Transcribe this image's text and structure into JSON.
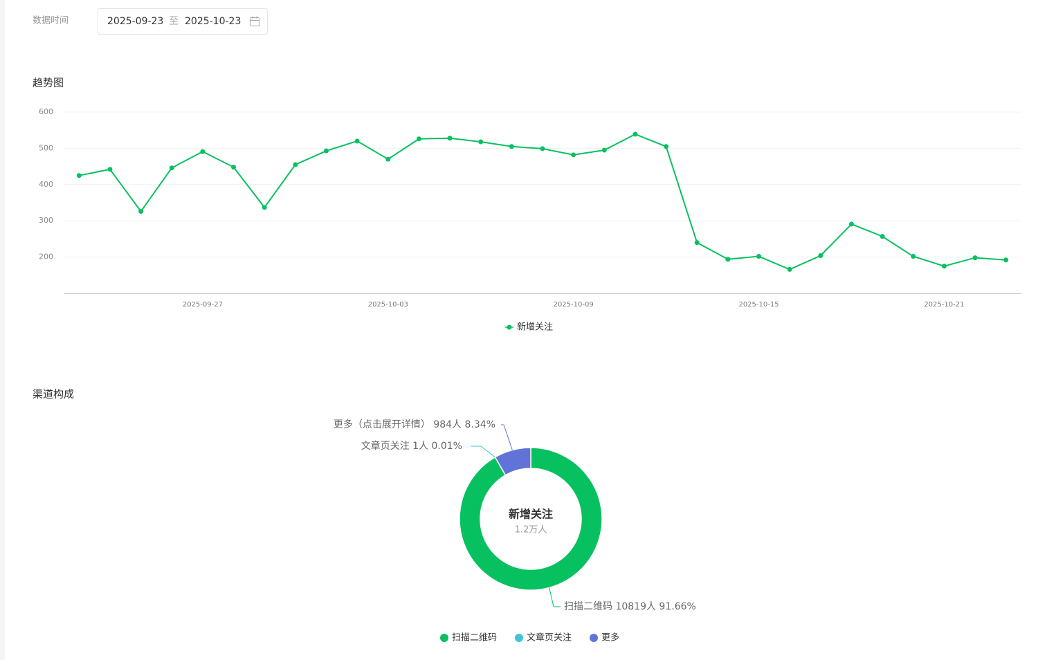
{
  "filter": {
    "label": "数据时间",
    "start": "2025-09-23",
    "separator": "至",
    "end": "2025-10-23"
  },
  "chart_data": [
    {
      "type": "line",
      "title": "趋势图",
      "categories": [
        null,
        null,
        null,
        null,
        "2025-09-27",
        null,
        null,
        null,
        null,
        null,
        "2025-10-03",
        null,
        null,
        null,
        null,
        null,
        "2025-10-09",
        null,
        null,
        null,
        null,
        null,
        "2025-10-15",
        null,
        null,
        null,
        null,
        null,
        "2025-10-21",
        null,
        null
      ],
      "series": [
        {
          "name": "新增关注",
          "color": "#07c160",
          "values": [
            425,
            442,
            326,
            446,
            491,
            448,
            337,
            455,
            493,
            520,
            470,
            526,
            528,
            518,
            505,
            499,
            482,
            495,
            539,
            505,
            240,
            194,
            202,
            166,
            204,
            291,
            257,
            202,
            175,
            198,
            192
          ]
        }
      ],
      "ylim": [
        100,
        600
      ],
      "yticks": [
        200,
        300,
        400,
        500,
        600
      ],
      "grid": true,
      "legend": "bottom"
    },
    {
      "type": "donut",
      "title": "渠道构成",
      "center_title": "新增关注",
      "center_subtitle": "1.2万人",
      "categories": [
        "扫描二维码",
        "文章页关注",
        "更多"
      ],
      "values": [
        10819,
        1,
        984
      ],
      "value_labels": [
        "扫描二维码 10819人 91.66%",
        "文章页关注 1人 0.01%",
        "更多（点击展开详情） 984人 8.34%"
      ],
      "colors": [
        "#07c160",
        "#3ec5d9",
        "#6173d6"
      ],
      "legend": "bottom"
    }
  ]
}
